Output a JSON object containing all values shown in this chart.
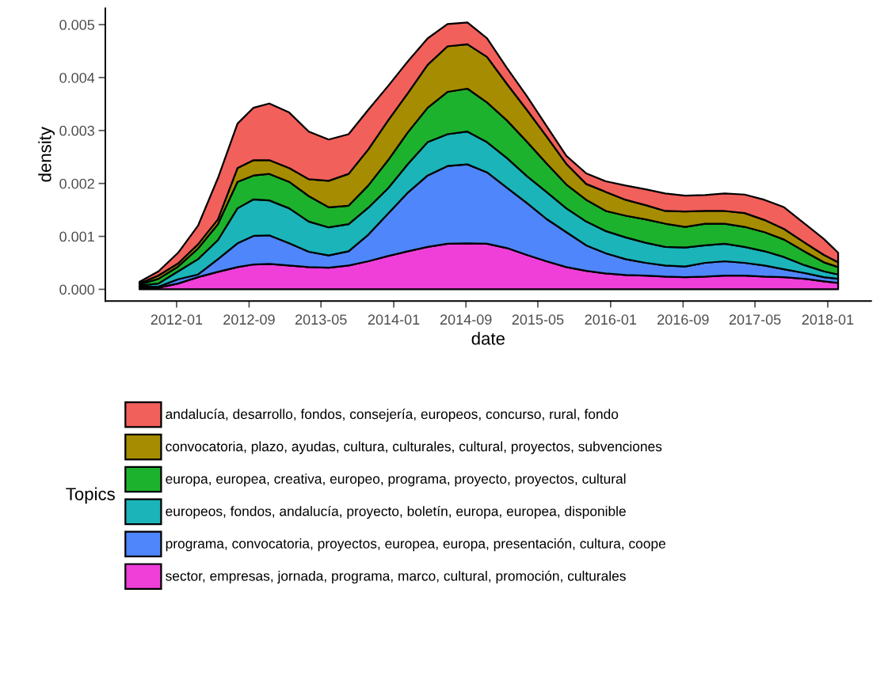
{
  "chart_data": {
    "type": "area",
    "stacked": true,
    "xlabel": "date",
    "ylabel": "density",
    "legend_title": "Topics",
    "legend": "bottom",
    "grid": false,
    "x": [
      "2011-08-29",
      "2011-11-01",
      "2012-01-06",
      "2012-03-13",
      "2012-05-19",
      "2012-07-24",
      "2012-09-16",
      "2012-11-08",
      "2013-01-14",
      "2013-03-21",
      "2013-05-27",
      "2013-08-02",
      "2013-10-07",
      "2013-12-13",
      "2014-02-18",
      "2014-04-25",
      "2014-07-01",
      "2014-09-06",
      "2014-11-11",
      "2015-01-17",
      "2015-03-25",
      "2015-05-30",
      "2015-08-05",
      "2015-10-11",
      "2015-12-16",
      "2016-02-21",
      "2016-04-28",
      "2016-07-03",
      "2016-09-08",
      "2016-11-14",
      "2017-01-19",
      "2017-03-27",
      "2017-06-02",
      "2017-08-07",
      "2017-10-13",
      "2017-12-19",
      "2018-02-05"
    ],
    "xlim": [
      "2011-05-06",
      "2018-05-27"
    ],
    "xticks": [
      {
        "value": "2012-01-01",
        "label": "2012-01"
      },
      {
        "value": "2012-09-01",
        "label": "2012-09"
      },
      {
        "value": "2013-05-01",
        "label": "2013-05"
      },
      {
        "value": "2014-01-01",
        "label": "2014-01"
      },
      {
        "value": "2014-09-01",
        "label": "2014-09"
      },
      {
        "value": "2015-05-01",
        "label": "2015-05"
      },
      {
        "value": "2016-01-01",
        "label": "2016-01"
      },
      {
        "value": "2016-09-01",
        "label": "2016-09"
      },
      {
        "value": "2017-05-01",
        "label": "2017-05"
      },
      {
        "value": "2018-01-01",
        "label": "2018-01"
      }
    ],
    "ylim": [
      -0.00022,
      0.00531
    ],
    "yticks": [
      {
        "value": 0,
        "label": "0.000"
      },
      {
        "value": 0.001,
        "label": "0.001"
      },
      {
        "value": 0.002,
        "label": "0.002"
      },
      {
        "value": 0.003,
        "label": "0.003"
      },
      {
        "value": 0.004,
        "label": "0.004"
      },
      {
        "value": 0.005,
        "label": "0.005"
      }
    ],
    "series": [
      {
        "name": "sector, empresas, jornada, programa, marco, cultural, promoción, culturales",
        "color": "#ef3fd8",
        "values": [
          3e-05,
          3e-05,
          0.00011,
          0.00023,
          0.00033,
          0.00042,
          0.00047,
          0.00048,
          0.00045,
          0.00042,
          0.00041,
          0.00045,
          0.00053,
          0.00063,
          0.00072,
          0.0008,
          0.00086,
          0.00087,
          0.00086,
          0.00078,
          0.00065,
          0.00053,
          0.00042,
          0.00035,
          0.0003,
          0.00027,
          0.00026,
          0.00024,
          0.00023,
          0.00024,
          0.00026,
          0.00026,
          0.00024,
          0.00023,
          0.0002,
          0.00015,
          0.00012
        ]
      },
      {
        "name": "programa, convocatoria, proyectos, europea, europa, presentación, cultura, coope",
        "color": "#4f86fb",
        "values": [
          2e-05,
          2e-05,
          8e-05,
          5e-05,
          0.00024,
          0.00045,
          0.00054,
          0.00054,
          0.00042,
          0.00029,
          0.00023,
          0.00027,
          0.0005,
          0.0008,
          0.00111,
          0.00135,
          0.00147,
          0.00149,
          0.00135,
          0.00114,
          0.00098,
          0.0008,
          0.00066,
          0.00048,
          0.00038,
          0.0003,
          0.00024,
          0.00021,
          0.0002,
          0.00026,
          0.00027,
          0.00024,
          0.00021,
          0.00015,
          0.00011,
          8e-05,
          8e-05
        ]
      },
      {
        "name": "europeos, fondos, andalucía, proyecto, boletín, europa, europea, disponible",
        "color": "#1bb4b9",
        "values": [
          2e-05,
          6e-05,
          0.00015,
          0.00029,
          0.00036,
          0.00066,
          0.00069,
          0.00066,
          0.00066,
          0.00057,
          0.00053,
          0.00051,
          0.00051,
          0.00048,
          0.00054,
          0.00063,
          0.0006,
          0.00062,
          0.00057,
          0.00056,
          0.00051,
          0.00051,
          0.00045,
          0.00045,
          0.00042,
          0.00041,
          0.00038,
          0.00035,
          0.00036,
          0.00033,
          0.00033,
          0.0003,
          0.00027,
          0.00023,
          0.00015,
          0.00011,
          8e-05
        ]
      },
      {
        "name": "europa, europea, creativa, europeo, programa, proyecto, proyectos, cultural",
        "color": "#1db22e",
        "values": [
          2e-05,
          9e-05,
          9e-05,
          0.0002,
          0.0003,
          0.0005,
          0.00045,
          0.0005,
          0.0005,
          0.00048,
          0.00038,
          0.00035,
          0.00042,
          0.00053,
          0.0006,
          0.00065,
          0.0008,
          0.00081,
          0.00075,
          0.00071,
          0.00065,
          0.00054,
          0.00045,
          0.00041,
          0.00038,
          0.00041,
          0.00044,
          0.00044,
          0.00039,
          0.00041,
          0.00038,
          0.00038,
          0.00036,
          0.00033,
          0.00026,
          0.00017,
          0.00014
        ]
      },
      {
        "name": "convocatoria, plazo, ayudas, cultura, culturales, cultural, proyectos, subvenciones",
        "color": "#a68c00",
        "values": [
          2e-05,
          6e-05,
          6e-05,
          8e-05,
          9e-05,
          0.00026,
          0.00029,
          0.00026,
          0.00026,
          0.00032,
          0.0005,
          0.0006,
          0.00068,
          0.00075,
          0.00074,
          0.00081,
          0.00086,
          0.00084,
          0.00086,
          0.00069,
          0.0006,
          0.00051,
          0.00039,
          0.0003,
          0.00036,
          0.0003,
          0.00027,
          0.00024,
          0.00029,
          0.00024,
          0.00024,
          0.00026,
          0.00023,
          0.0002,
          0.00017,
          0.00014,
          9e-05
        ]
      },
      {
        "name": "andalucía, desarrollo, fondos, consejería, europeos, concurso, rural, fondo",
        "color": "#f2605c",
        "values": [
          3e-05,
          8e-05,
          0.0002,
          0.00035,
          0.00078,
          0.00084,
          0.00099,
          0.00107,
          0.00105,
          0.0009,
          0.00078,
          0.00075,
          0.00075,
          0.00065,
          0.0006,
          0.0005,
          0.00042,
          0.00041,
          0.00035,
          0.0003,
          0.00026,
          0.0002,
          0.00015,
          0.0002,
          0.0002,
          0.00027,
          0.0003,
          0.00033,
          0.0003,
          0.0003,
          0.00033,
          0.00035,
          0.00038,
          0.00041,
          0.00036,
          0.0003,
          0.00018
        ]
      }
    ]
  }
}
